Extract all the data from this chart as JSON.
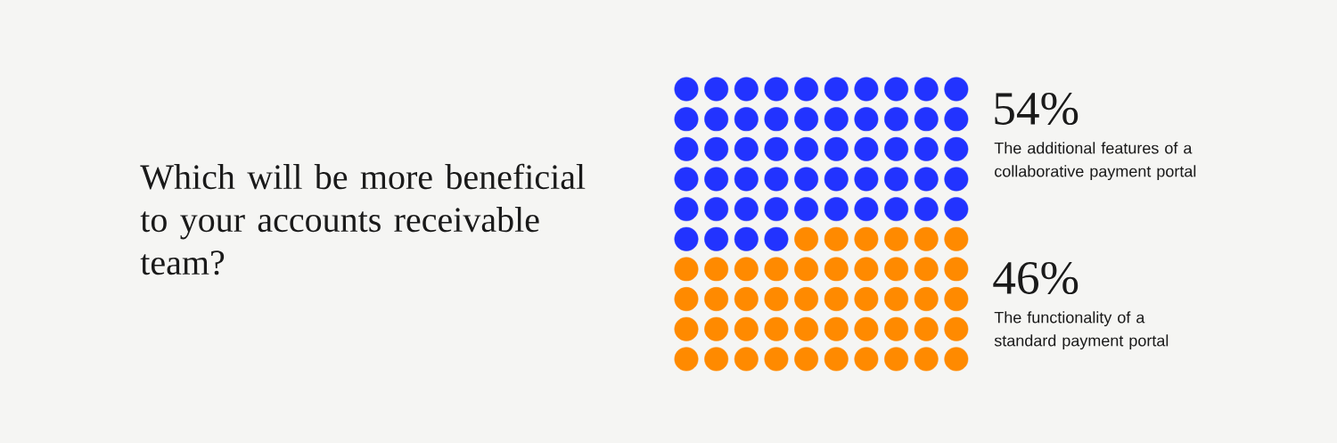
{
  "chart_data": {
    "type": "other",
    "title": "Which will be more beneficial to your accounts receivable team?",
    "categories": [
      "The additional features of a collaborative payment portal",
      "The functionality of a standard payment portal"
    ],
    "values": [
      54,
      46
    ],
    "value_labels": [
      "54%",
      "46%"
    ],
    "colors": [
      "#2233ff",
      "#ff8a00"
    ]
  }
}
